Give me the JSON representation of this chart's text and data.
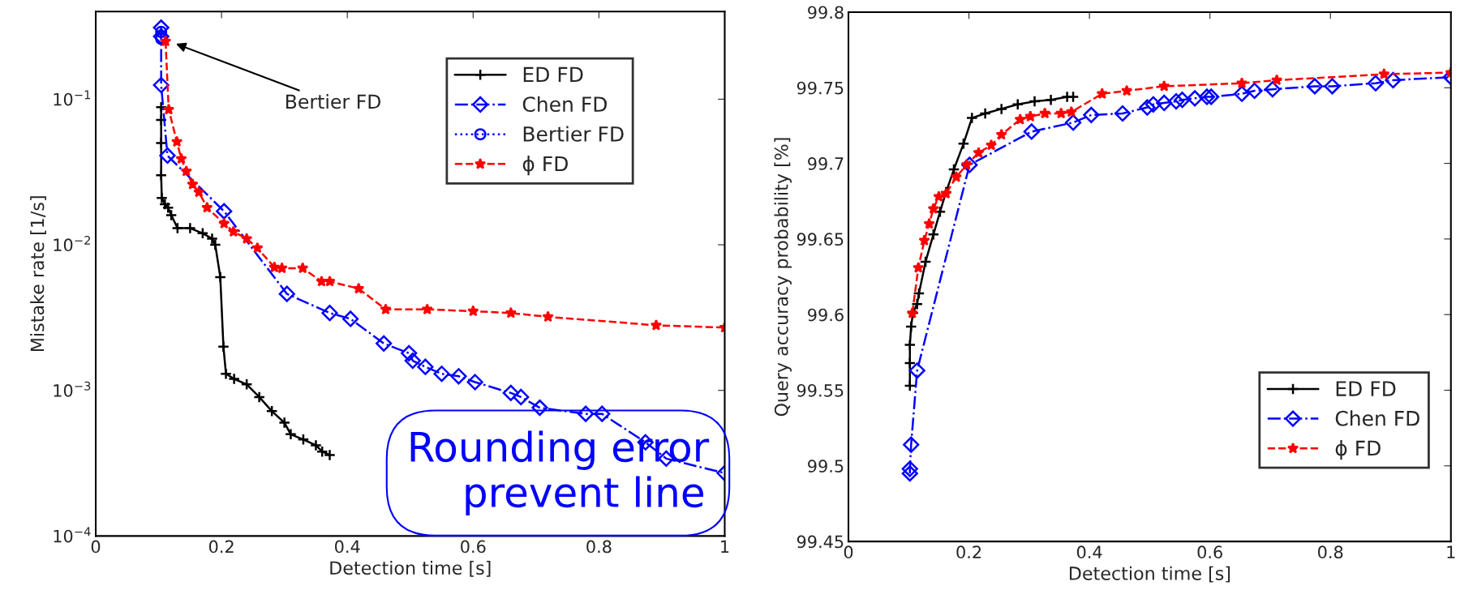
{
  "chart_data": [
    {
      "type": "line",
      "xlabel": "Detection time [s]",
      "ylabel": "Mistake rate [1/s]",
      "log": "y",
      "xlim": [
        0,
        1
      ],
      "ylim": [
        0.0001,
        0.4
      ],
      "xticks": [
        0,
        0.2,
        0.4,
        0.6,
        0.8,
        1
      ],
      "yticks": [
        {
          "value": 0.0001,
          "label": "10$^{−4}$"
        },
        {
          "value": 0.001,
          "label": "10$^{−3}$"
        },
        {
          "value": 0.01,
          "label": "10$^{−2}$"
        },
        {
          "value": 0.1,
          "label": "10$^{−1}$"
        }
      ],
      "grid": false,
      "legend": "top right",
      "annotations": [
        "Bertier FD",
        "Rounding error\n    prevent line"
      ],
      "series": [
        {
          "name": "ED FD",
          "color": "#000000",
          "marker": "cross",
          "line_style": "solid",
          "x": [
            0.104,
            0.104,
            0.104,
            0.104,
            0.105,
            0.11,
            0.115,
            0.12,
            0.13,
            0.15,
            0.17,
            0.185,
            0.19,
            0.198,
            0.203,
            0.207,
            0.22,
            0.24,
            0.26,
            0.28,
            0.3,
            0.31,
            0.33,
            0.35,
            0.36,
            0.372
          ],
          "values": [
            0.088,
            0.072,
            0.05,
            0.03,
            0.021,
            0.019,
            0.018,
            0.016,
            0.013,
            0.013,
            0.012,
            0.011,
            0.01,
            0.006,
            0.002,
            0.0013,
            0.0012,
            0.0011,
            0.0009,
            0.00072,
            0.0006,
            0.0005,
            0.00046,
            0.00042,
            0.00038,
            0.00036
          ]
        },
        {
          "name": "Chen FD",
          "color": "#0000ff",
          "marker": "diamond",
          "line_style": "dashdot",
          "x": [
            0.104,
            0.104,
            0.104,
            0.114,
            0.204,
            0.304,
            0.372,
            0.405,
            0.458,
            0.498,
            0.504,
            0.524,
            0.55,
            0.577,
            0.603,
            0.66,
            0.676,
            0.706,
            0.779,
            0.805,
            0.874,
            0.907,
            1.0
          ],
          "values": [
            0.31,
            0.27,
            0.125,
            0.041,
            0.017,
            0.0046,
            0.0034,
            0.0031,
            0.0021,
            0.0018,
            0.0016,
            0.00145,
            0.0013,
            0.00125,
            0.00114,
            0.00096,
            0.0009,
            0.00076,
            0.00069,
            0.00069,
            0.00044,
            0.00034,
            0.00027
          ]
        },
        {
          "name": "Bertier FD",
          "color": "#0000ff",
          "marker": "circle",
          "line_style": "dotted",
          "x": [
            0.104,
            0.104
          ],
          "values": [
            0.29,
            0.26
          ]
        },
        {
          "name": "ϕ FD",
          "color": "#ff0000",
          "marker": "star",
          "line_style": "dashed",
          "x": [
            0.111,
            0.116,
            0.129,
            0.136,
            0.144,
            0.154,
            0.164,
            0.177,
            0.204,
            0.219,
            0.24,
            0.257,
            0.284,
            0.296,
            0.329,
            0.359,
            0.372,
            0.418,
            0.461,
            0.527,
            0.6,
            0.66,
            0.719,
            0.891,
            1.0
          ],
          "values": [
            0.25,
            0.085,
            0.051,
            0.039,
            0.032,
            0.026,
            0.023,
            0.018,
            0.014,
            0.0123,
            0.011,
            0.0095,
            0.007,
            0.0069,
            0.0069,
            0.0056,
            0.0056,
            0.005,
            0.0036,
            0.0036,
            0.0035,
            0.0034,
            0.0032,
            0.0028,
            0.0027
          ]
        }
      ]
    },
    {
      "type": "line",
      "xlabel": "Detection time [s]",
      "ylabel": "Query accuracy probability [%]",
      "xlim": [
        0,
        1
      ],
      "ylim": [
        99.45,
        99.8
      ],
      "xticks": [
        0,
        0.2,
        0.4,
        0.6,
        0.8,
        1
      ],
      "yticks": [
        99.45,
        99.5,
        99.55,
        99.6,
        99.65,
        99.7,
        99.75,
        99.8
      ],
      "grid": false,
      "legend": "bottom right",
      "series": [
        {
          "name": "ED FD",
          "color": "#000000",
          "marker": "cross",
          "line_style": "solid",
          "x": [
            0.102,
            0.102,
            0.102,
            0.104,
            0.107,
            0.114,
            0.117,
            0.128,
            0.141,
            0.152,
            0.162,
            0.175,
            0.191,
            0.205,
            0.227,
            0.254,
            0.281,
            0.309,
            0.336,
            0.363,
            0.373
          ],
          "values": [
            99.553,
            99.568,
            99.58,
            99.592,
            99.601,
            99.607,
            99.614,
            99.635,
            99.653,
            99.668,
            99.681,
            99.696,
            99.713,
            99.73,
            99.733,
            99.736,
            99.739,
            99.741,
            99.742,
            99.744,
            99.744
          ]
        },
        {
          "name": "Chen FD",
          "color": "#0000ff",
          "marker": "diamond",
          "line_style": "dashdot",
          "x": [
            0.102,
            0.102,
            0.104,
            0.114,
            0.201,
            0.304,
            0.373,
            0.403,
            0.455,
            0.496,
            0.506,
            0.524,
            0.544,
            0.554,
            0.575,
            0.595,
            0.602,
            0.653,
            0.674,
            0.704,
            0.774,
            0.803,
            0.875,
            0.904,
            1.0
          ],
          "values": [
            99.495,
            99.498,
            99.514,
            99.563,
            99.699,
            99.721,
            99.727,
            99.732,
            99.733,
            99.737,
            99.739,
            99.74,
            99.741,
            99.742,
            99.743,
            99.744,
            99.744,
            99.746,
            99.748,
            99.749,
            99.751,
            99.751,
            99.753,
            99.755,
            99.757
          ]
        },
        {
          "name": "ϕ FD",
          "color": "#ff0000",
          "marker": "star",
          "line_style": "dashed",
          "x": [
            0.106,
            0.116,
            0.126,
            0.134,
            0.141,
            0.15,
            0.162,
            0.179,
            0.196,
            0.216,
            0.237,
            0.254,
            0.285,
            0.302,
            0.326,
            0.353,
            0.37,
            0.421,
            0.462,
            0.524,
            0.653,
            0.711,
            0.889,
            1.0
          ],
          "values": [
            99.601,
            99.631,
            99.649,
            99.66,
            99.67,
            99.678,
            99.68,
            99.691,
            99.699,
            99.707,
            99.712,
            99.719,
            99.729,
            99.731,
            99.733,
            99.733,
            99.734,
            99.746,
            99.748,
            99.751,
            99.753,
            99.755,
            99.759,
            99.76
          ]
        }
      ]
    }
  ]
}
